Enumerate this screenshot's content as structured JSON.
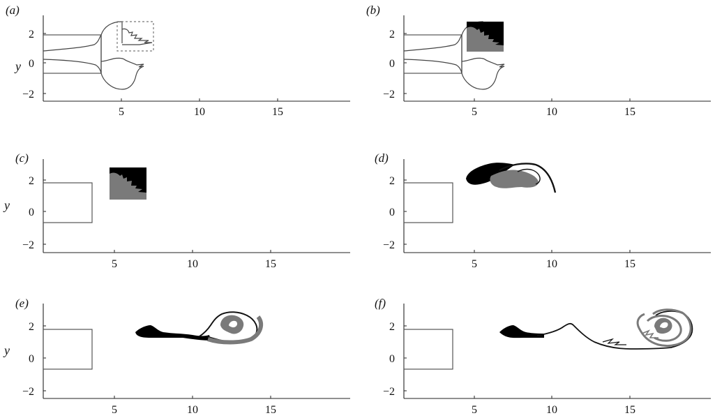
{
  "figure": {
    "panels": [
      {
        "id": "a",
        "label": "(a)",
        "show_ylabel": true,
        "state": "boundary-with-dashed-box"
      },
      {
        "id": "b",
        "label": "(b)",
        "show_ylabel": false,
        "state": "boundary-with-filled-box"
      },
      {
        "id": "c",
        "label": "(c)",
        "show_ylabel": true,
        "state": "filled-box"
      },
      {
        "id": "d",
        "label": "(d)",
        "show_ylabel": false,
        "state": "rolled-blob"
      },
      {
        "id": "e",
        "label": "(e)",
        "show_ylabel": true,
        "state": "spiral-vortex"
      },
      {
        "id": "f",
        "label": "(f)",
        "show_ylabel": false,
        "state": "stretched-filament"
      }
    ],
    "axes": {
      "ylabel": "y",
      "x_ticks": [
        "5",
        "10",
        "15"
      ],
      "y_ticks": [
        "2",
        "0",
        "−2"
      ],
      "xlim": [
        0,
        20
      ],
      "ylim": [
        -2.5,
        3.5
      ]
    },
    "cylinder": {
      "x": [
        0,
        3.7
      ],
      "y": [
        -0.6,
        1.9
      ]
    },
    "colors": {
      "dark": "#000000",
      "grey": "#7a7a7a",
      "outline": "#555555",
      "axis": "#222222"
    }
  }
}
